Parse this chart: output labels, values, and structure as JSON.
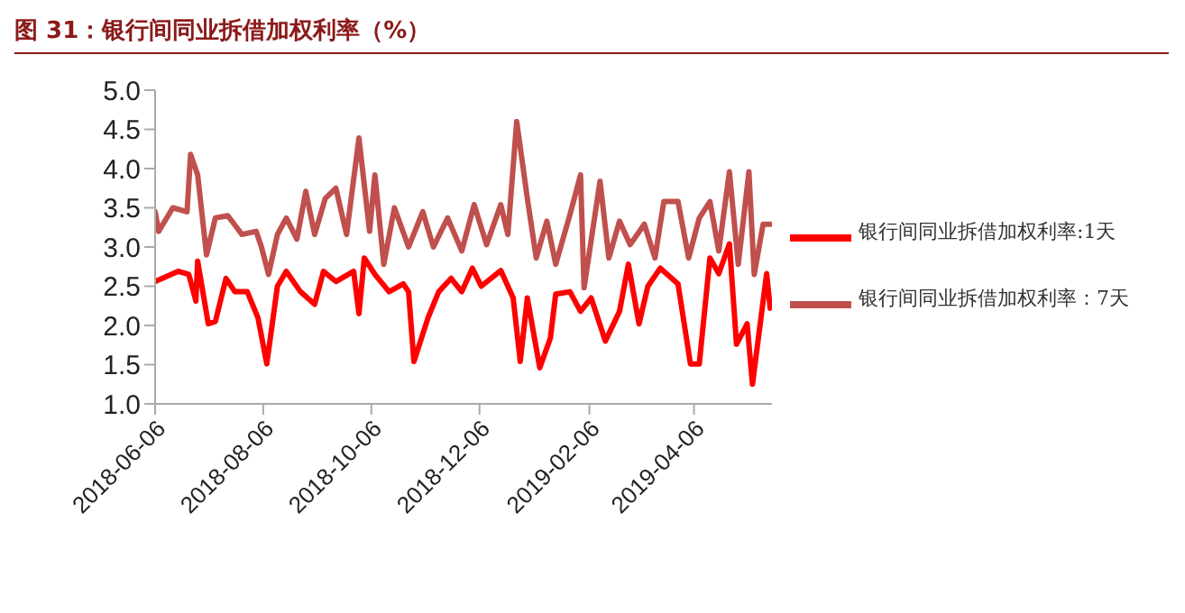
{
  "chart_data": {
    "type": "line",
    "title": "图 31：银行间同业拆借加权利率（%）",
    "xlim": [
      "2018-06-06",
      "2019-05-20"
    ],
    "xticks": [
      "2018-06-06",
      "2018-08-06",
      "2018-10-06",
      "2018-12-06",
      "2019-02-06",
      "2019-04-06"
    ],
    "ylim": [
      1.0,
      5.0
    ],
    "yticks": [
      {
        "value": 1,
        "label": "1.0"
      },
      {
        "value": 1.5,
        "label": "1.5"
      },
      {
        "value": 2,
        "label": "2.0"
      },
      {
        "value": 2.5,
        "label": "2.5"
      },
      {
        "value": 3,
        "label": "3.0"
      },
      {
        "value": 3.5,
        "label": "3.5"
      },
      {
        "value": 4,
        "label": "4.0"
      },
      {
        "value": 4.5,
        "label": "4.5"
      },
      {
        "value": 5,
        "label": "5.0"
      }
    ],
    "grid": false,
    "legend": "right",
    "marker": "none",
    "line_style": "solid",
    "series": [
      {
        "name": "银行间同业拆借加权利率:1天",
        "color": "#ff0000",
        "x": [
          "2018-06-06",
          "2018-06-19",
          "2018-06-25",
          "2018-06-29",
          "2018-06-30",
          "2018-07-06",
          "2018-07-10",
          "2018-07-16",
          "2018-07-21",
          "2018-07-28",
          "2018-08-03",
          "2018-08-08",
          "2018-08-14",
          "2018-08-19",
          "2018-08-27",
          "2018-09-04",
          "2018-09-09",
          "2018-09-16",
          "2018-09-26",
          "2018-09-29",
          "2018-10-02",
          "2018-10-08",
          "2018-10-16",
          "2018-10-24",
          "2018-10-27",
          "2018-10-30",
          "2018-11-07",
          "2018-11-13",
          "2018-11-20",
          "2018-11-26",
          "2018-12-02",
          "2018-12-07",
          "2018-12-18",
          "2018-12-25",
          "2018-12-29",
          "2019-01-02",
          "2019-01-09",
          "2019-01-15",
          "2019-01-18",
          "2019-01-26",
          "2019-02-01",
          "2019-02-07",
          "2019-02-15",
          "2019-02-23",
          "2019-02-28",
          "2019-03-06",
          "2019-03-11",
          "2019-03-18",
          "2019-03-28",
          "2019-04-04",
          "2019-04-09",
          "2019-04-15",
          "2019-04-20",
          "2019-04-26",
          "2019-04-30",
          "2019-05-06",
          "2019-05-09",
          "2019-05-17",
          "2019-05-19"
        ],
        "values": [
          2.56,
          2.69,
          2.65,
          2.31,
          2.82,
          2.02,
          2.05,
          2.6,
          2.43,
          2.43,
          2.1,
          1.51,
          2.5,
          2.69,
          2.43,
          2.27,
          2.69,
          2.56,
          2.69,
          2.15,
          2.86,
          2.65,
          2.43,
          2.53,
          2.43,
          1.54,
          2.1,
          2.43,
          2.6,
          2.43,
          2.73,
          2.5,
          2.7,
          2.35,
          1.54,
          2.35,
          1.46,
          1.84,
          2.4,
          2.43,
          2.18,
          2.35,
          1.8,
          2.18,
          2.78,
          2.02,
          2.5,
          2.73,
          2.53,
          1.51,
          1.51,
          2.86,
          2.66,
          3.04,
          1.76,
          2.02,
          1.25,
          2.66,
          2.22
        ]
      },
      {
        "name": "银行间同业拆借加权利率：7天",
        "color": "#c0504d",
        "x": [
          "2018-06-06",
          "2018-06-08",
          "2018-06-16",
          "2018-06-24",
          "2018-06-26",
          "2018-06-30",
          "2018-07-05",
          "2018-07-10",
          "2018-07-17",
          "2018-07-25",
          "2018-08-02",
          "2018-08-05",
          "2018-08-09",
          "2018-08-14",
          "2018-08-19",
          "2018-08-25",
          "2018-08-30",
          "2018-09-04",
          "2018-09-10",
          "2018-09-16",
          "2018-09-22",
          "2018-09-29",
          "2018-10-05",
          "2018-10-08",
          "2018-10-13",
          "2018-10-19",
          "2018-10-27",
          "2018-11-04",
          "2018-11-10",
          "2018-11-18",
          "2018-11-26",
          "2018-12-03",
          "2018-12-10",
          "2018-12-18",
          "2018-12-22",
          "2018-12-27",
          "2019-01-02",
          "2019-01-07",
          "2019-01-13",
          "2019-01-18",
          "2019-01-26",
          "2019-02-01",
          "2019-02-03",
          "2019-02-12",
          "2019-02-17",
          "2019-02-23",
          "2019-03-01",
          "2019-03-09",
          "2019-03-15",
          "2019-03-20",
          "2019-03-28",
          "2019-04-03",
          "2019-04-09",
          "2019-04-15",
          "2019-04-20",
          "2019-04-26",
          "2019-05-01",
          "2019-05-07",
          "2019-05-10",
          "2019-05-15",
          "2019-05-19"
        ],
        "values": [
          3.45,
          3.2,
          3.5,
          3.45,
          4.18,
          3.92,
          2.9,
          3.37,
          3.4,
          3.16,
          3.2,
          3.0,
          2.65,
          3.16,
          3.37,
          3.1,
          3.71,
          3.16,
          3.62,
          3.75,
          3.16,
          4.39,
          3.2,
          3.92,
          2.78,
          3.5,
          3.0,
          3.45,
          3.0,
          3.37,
          2.95,
          3.54,
          3.03,
          3.54,
          3.16,
          4.6,
          3.62,
          2.86,
          3.33,
          2.78,
          3.41,
          3.92,
          2.48,
          3.84,
          2.86,
          3.33,
          3.03,
          3.29,
          2.86,
          3.58,
          3.58,
          2.86,
          3.37,
          3.58,
          2.95,
          3.96,
          2.78,
          3.96,
          2.65,
          3.29,
          3.29
        ]
      }
    ]
  }
}
